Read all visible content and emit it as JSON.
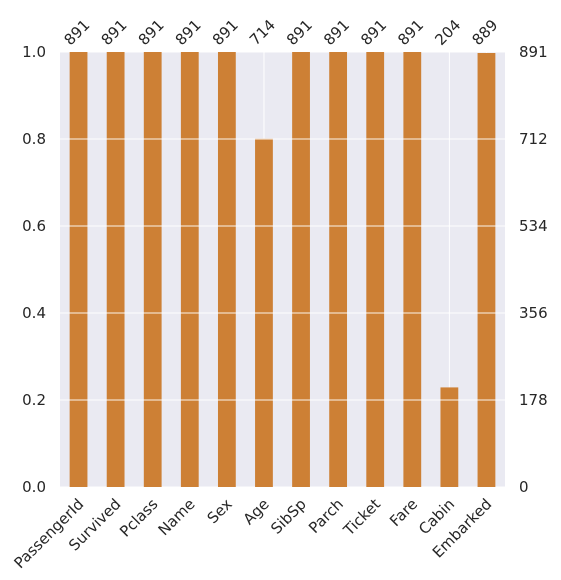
{
  "chart_data": {
    "type": "bar",
    "categories": [
      "PassengerId",
      "Survived",
      "Pclass",
      "Name",
      "Sex",
      "Age",
      "SibSp",
      "Parch",
      "Ticket",
      "Fare",
      "Cabin",
      "Embarked"
    ],
    "counts": [
      891,
      891,
      891,
      891,
      891,
      714,
      891,
      891,
      891,
      891,
      204,
      889
    ],
    "total": 891,
    "ylim": [
      0,
      1
    ],
    "left_ticks": [
      "0.0",
      "0.2",
      "0.4",
      "0.6",
      "0.8",
      "1.0"
    ],
    "right_ticks": [
      "0",
      "178",
      "356",
      "534",
      "712",
      "891"
    ],
    "bar_labels": [
      "891",
      "891",
      "891",
      "891",
      "891",
      "714",
      "891",
      "891",
      "891",
      "891",
      "204",
      "889"
    ],
    "bar_color": "#cd8035",
    "plot_background": "#eaeaf2",
    "grid": true,
    "title": "",
    "xlabel": "",
    "ylabel": ""
  }
}
